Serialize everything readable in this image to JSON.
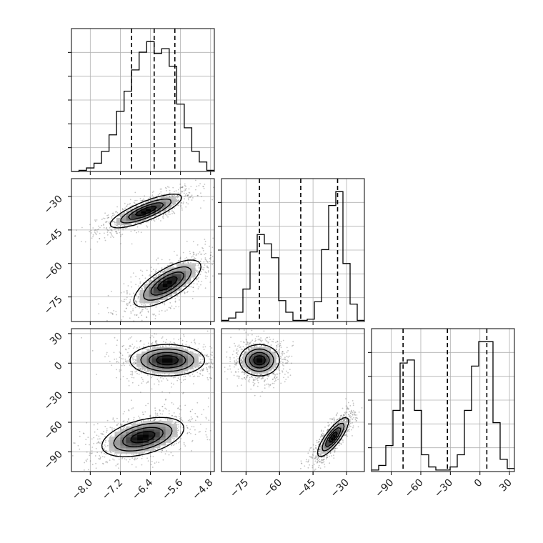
{
  "chart_data": {
    "type": "corner",
    "parameters": [
      {
        "range": [
          -8.5,
          -4.7
        ],
        "ticks": [
          -8.0,
          -7.2,
          -6.4,
          -5.6,
          -4.8
        ],
        "tick_labels": [
          "−8.0",
          "−7.2",
          "−6.4",
          "−5.6",
          "−4.8"
        ],
        "quantiles": [
          -6.9,
          -6.3,
          -5.75
        ]
      },
      {
        "range": [
          -86,
          -22
        ],
        "ticks": [
          -30,
          -45,
          -60,
          -75
        ],
        "tick_labels": [
          "−30",
          "−45",
          "−60",
          "−75"
        ],
        "quantiles": [
          -69,
          -50.5,
          -34
        ]
      },
      {
        "range": [
          -110,
          35
        ],
        "ticks": [
          30,
          0,
          -30,
          -60,
          -90
        ],
        "tick_labels": [
          "30",
          "0",
          "−30",
          "−60",
          "−90"
        ],
        "quantiles": [
          -78,
          -33,
          7
        ]
      }
    ],
    "x_axis_tick_labels": {
      "param1": [
        "−8.0",
        "−7.2",
        "−6.4",
        "−5.6",
        "−4.8"
      ],
      "param2": [
        "−75",
        "−60",
        "−45",
        "−30"
      ],
      "param3": [
        "−90",
        "−60",
        "−30",
        "0",
        "30"
      ]
    },
    "histograms": [
      {
        "param": 1,
        "bin_edges": [
          -8.5,
          -8.3,
          -8.1,
          -7.9,
          -7.7,
          -7.5,
          -7.3,
          -7.1,
          -6.9,
          -6.7,
          -6.5,
          -6.3,
          -6.1,
          -5.9,
          -5.7,
          -5.5,
          -5.3,
          -5.1,
          -4.9,
          -4.7
        ],
        "counts": [
          0,
          1,
          3,
          7,
          17,
          31,
          51,
          68,
          86,
          101,
          110,
          100,
          104,
          89,
          57,
          37,
          17,
          8,
          1
        ]
      },
      {
        "param": 2,
        "bin_edges": [
          -86,
          -82.8,
          -79.6,
          -76.4,
          -73.2,
          -70,
          -66.8,
          -63.6,
          -60.4,
          -57.2,
          -54,
          -50.8,
          -47.6,
          -44.4,
          -41.2,
          -38,
          -34.8,
          -31.6,
          -28.4,
          -25.2,
          -22
        ],
        "counts": [
          1,
          3,
          8,
          28,
          60,
          75,
          67,
          55,
          18,
          8,
          1,
          1,
          2,
          17,
          62,
          100,
          112,
          50,
          15,
          1
        ]
      },
      {
        "param": 3,
        "bin_edges": [
          -110,
          -102.75,
          -95.5,
          -88.25,
          -81,
          -73.75,
          -66.5,
          -59.25,
          -52,
          -44.75,
          -37.5,
          -30.25,
          -23,
          -15.75,
          -8.5,
          -1.25,
          6,
          13.25,
          20.5,
          27.75,
          35
        ],
        "counts": [
          1,
          4,
          17,
          40,
          71,
          73,
          40,
          11,
          3,
          1,
          1,
          3,
          11,
          40,
          69,
          85,
          85,
          32,
          8,
          2
        ]
      }
    ],
    "density_panels": [
      {
        "x_param": 1,
        "y_param": 2,
        "modes": [
          {
            "mean": [
              -6.52,
              -36.5
            ],
            "sd": [
              0.48,
              3.8
            ],
            "corr": 0.8,
            "weight": 0.5
          },
          {
            "mean": [
              -5.95,
              -69.0
            ],
            "sd": [
              0.45,
              5.3
            ],
            "corr": 0.72,
            "weight": 0.5
          }
        ]
      },
      {
        "x_param": 1,
        "y_param": 3,
        "modes": [
          {
            "mean": [
              -5.95,
              3.0
            ],
            "sd": [
              0.5,
              8.0
            ],
            "corr": 0.0,
            "weight": 0.5
          },
          {
            "mean": [
              -6.6,
              -75.0
            ],
            "sd": [
              0.55,
              10.0
            ],
            "corr": 0.45,
            "weight": 0.5
          }
        ]
      },
      {
        "x_param": 2,
        "y_param": 3,
        "modes": [
          {
            "mean": [
              -69.0,
              3.0
            ],
            "sd": [
              4.5,
              8.0
            ],
            "corr": 0.0,
            "weight": 0.5
          },
          {
            "mean": [
              -36.0,
              -75.0
            ],
            "sd": [
              3.5,
              10.0
            ],
            "corr": 0.82,
            "weight": 0.5
          }
        ]
      }
    ],
    "grid": true,
    "quantile_line_style": "dashed",
    "hist_color": "#000000",
    "density_color": "#000000",
    "axis_color": "#000000",
    "grid_color": "#b0b0b0"
  }
}
